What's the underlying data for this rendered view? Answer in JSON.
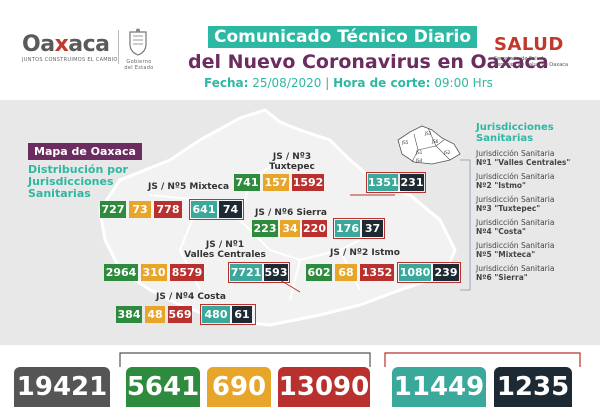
{
  "header": {
    "logo_prefix": "Oa",
    "logo_x": "x",
    "logo_mid": "a",
    "logo_x2": "c",
    "logo_suffix": "a",
    "logo_tagline": "JUNTOS CONSTRUIMOS EL CAMBIO",
    "gov_label": "Gobierno del Estado",
    "title_line1": "Comunicado Técnico Diario",
    "title_line2": "del Nuevo Coronavirus en Oaxaca",
    "date_label": "Fecha:",
    "date_value": "25/08/2020",
    "cut_label": "Hora de corte:",
    "cut_value": "09:00 Hrs",
    "salud": "SALUD",
    "salud_sub1": "Secretaría de Salud",
    "salud_sub2": "Servicios de Salud de Oaxaca"
  },
  "map": {
    "title": "Mapa de Oaxaca",
    "subtitle": [
      "Distribución por",
      "Jurisdicciones",
      "Sanitarias"
    ]
  },
  "regions": {
    "tuxtepec": {
      "label1": "JS / Nº3",
      "label2": "Tuxtepec",
      "values": [
        "741",
        "157",
        "1592",
        "1351",
        "231"
      ]
    },
    "mixteca": {
      "label1": "JS / Nº5 Mixteca",
      "values": [
        "727",
        "73",
        "778",
        "641",
        "74"
      ]
    },
    "sierra": {
      "label1": "JS / Nº6 Sierra",
      "values": [
        "223",
        "34",
        "220",
        "176",
        "37"
      ]
    },
    "valles": {
      "label1": "JS / Nº1",
      "label2": "Valles Centrales",
      "values": [
        "2964",
        "310",
        "8579",
        "7721",
        "593"
      ]
    },
    "istmo": {
      "label1": "JS / Nº2 Istmo",
      "values": [
        "602",
        "68",
        "1352",
        "1080",
        "239"
      ]
    },
    "costa": {
      "label1": "JS / Nº4 Costa",
      "values": [
        "384",
        "48",
        "569",
        "480",
        "61"
      ]
    }
  },
  "legend": {
    "title1": "Jurisdicciones",
    "title2": "Sanitarias",
    "items": [
      {
        "l1": "Jurisdicción Sanitaria",
        "l2": "Nº1 \"Valles Centrales\""
      },
      {
        "l1": "Jurisdicción Sanitaria",
        "l2": "Nº2 \"Istmo\""
      },
      {
        "l1": "Jurisdicción Sanitaria",
        "l2": "Nº3 \"Tuxtepec\""
      },
      {
        "l1": "Jurisdicción Sanitaria",
        "l2": "Nº4 \"Costa\""
      },
      {
        "l1": "Jurisdicción Sanitaria",
        "l2": "Nº5 \"Mixteca\""
      },
      {
        "l1": "Jurisdicción Sanitaria",
        "l2": "Nº6 \"Sierra\""
      }
    ],
    "mini_labels": [
      "JS5",
      "JS1",
      "JS3",
      "JS6",
      "JS4",
      "JS2"
    ]
  },
  "totals": [
    "19421",
    "5641",
    "690",
    "13090",
    "11449",
    "1235"
  ],
  "colors": {
    "teal": "#2db8a3",
    "purple": "#6b2c5f",
    "green": "#2e8b3e",
    "yellow": "#e7a52a",
    "red": "#b8312f",
    "dark": "#1e2a33",
    "gray": "#555555"
  }
}
